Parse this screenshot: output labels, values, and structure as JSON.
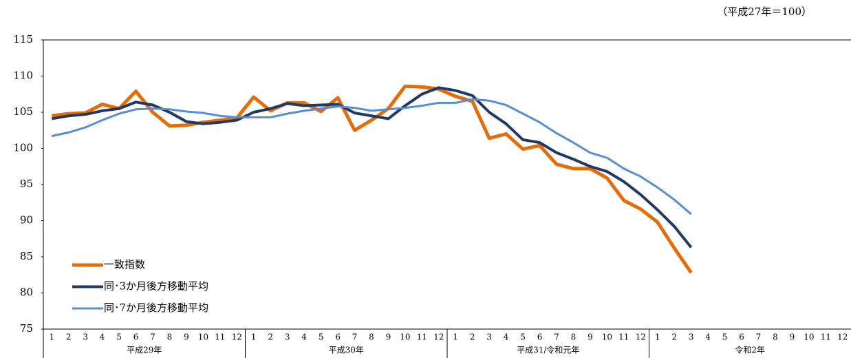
{
  "chart_data": {
    "type": "line",
    "note": "（平成27年＝100）",
    "categories": [
      "1",
      "2",
      "3",
      "4",
      "5",
      "6",
      "7",
      "8",
      "9",
      "10",
      "11",
      "12",
      "1",
      "2",
      "3",
      "4",
      "5",
      "6",
      "7",
      "8",
      "9",
      "10",
      "11",
      "12",
      "1",
      "2",
      "3",
      "4",
      "5",
      "6",
      "7",
      "8",
      "9",
      "10",
      "11",
      "12",
      "1",
      "2",
      "3",
      "4",
      "5",
      "6",
      "7",
      "8",
      "9",
      "10",
      "11",
      "12"
    ],
    "year_groups": [
      "平成29年",
      "平成30年",
      "平成31/令和元年",
      "令和2年"
    ],
    "ylim": [
      75,
      115
    ],
    "yticks": [
      75,
      80,
      85,
      90,
      95,
      100,
      105,
      110,
      115
    ],
    "grid": false,
    "legend": "lower left",
    "series": [
      {
        "name": "一致指数",
        "color": "#e46c0a",
        "line_width": 5,
        "values": [
          104.5,
          104.8,
          104.9,
          106.1,
          105.5,
          107.9,
          105.0,
          103.1,
          103.2,
          103.6,
          103.9,
          104.2,
          107.1,
          105.2,
          106.3,
          106.3,
          105.1,
          107.0,
          102.5,
          103.9,
          105.5,
          108.6,
          108.5,
          108.2,
          107.2,
          106.5,
          101.4,
          102.0,
          99.9,
          100.4,
          97.8,
          97.2,
          97.2,
          95.9,
          92.8,
          91.6,
          89.8,
          86.2,
          82.8,
          null,
          null,
          null,
          null,
          null,
          null,
          null,
          null,
          null
        ]
      },
      {
        "name": "同･3か月後方移動平均",
        "color": "#1f3864",
        "line_width": 4,
        "values": [
          104.1,
          104.5,
          104.7,
          105.2,
          105.5,
          106.4,
          106.0,
          105.0,
          103.7,
          103.4,
          103.6,
          103.9,
          105.0,
          105.5,
          106.2,
          105.9,
          106.0,
          106.1,
          104.9,
          104.5,
          104.1,
          105.9,
          107.5,
          108.4,
          108.0,
          107.3,
          105.0,
          103.4,
          101.2,
          100.8,
          99.4,
          98.5,
          97.5,
          96.8,
          95.4,
          93.6,
          91.5,
          89.2,
          86.3,
          null,
          null,
          null,
          null,
          null,
          null,
          null,
          null,
          null
        ]
      },
      {
        "name": "同･7か月後方移動平均",
        "color": "#558ed5",
        "line_width": 3,
        "values": [
          101.7,
          102.2,
          102.9,
          103.9,
          104.8,
          105.4,
          105.5,
          105.4,
          105.1,
          104.9,
          104.5,
          104.3,
          104.3,
          104.3,
          104.8,
          105.2,
          105.5,
          105.8,
          105.6,
          105.2,
          105.4,
          105.6,
          105.9,
          106.3,
          106.3,
          106.8,
          106.6,
          106.0,
          104.8,
          103.6,
          102.1,
          100.8,
          99.4,
          98.7,
          97.2,
          96.1,
          94.6,
          92.9,
          90.9,
          null,
          null,
          null,
          null,
          null,
          null,
          null,
          null,
          null
        ]
      }
    ]
  }
}
